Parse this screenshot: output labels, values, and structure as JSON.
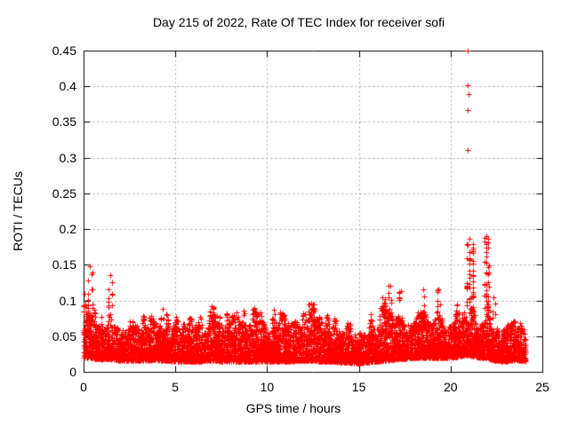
{
  "chart_data": {
    "type": "scatter",
    "title": "Day 215 of 2022, Rate Of TEC Index for receiver sofi",
    "xlabel": "GPS time / hours",
    "ylabel": "ROTI / TECUs",
    "xlim": [
      0,
      25
    ],
    "ylim": [
      0,
      0.45
    ],
    "xticks": [
      0,
      5,
      10,
      15,
      20,
      25
    ],
    "xtick_labels": [
      "0",
      "5",
      "10",
      "15",
      "20",
      "25"
    ],
    "yticks": [
      0,
      0.05,
      0.1,
      0.15,
      0.2,
      0.25,
      0.3,
      0.35,
      0.4,
      0.45
    ],
    "ytick_labels": [
      "0",
      "0.05",
      "0.1",
      "0.15",
      "0.2",
      "0.25",
      "0.3",
      "0.35",
      "0.4",
      "0.45"
    ],
    "grid": {
      "style": "dashed",
      "color": "#a9a9a9"
    },
    "border_color": "#000000",
    "marker": {
      "shape": "plus",
      "color": "#ff0000",
      "size": 7
    },
    "series_name": "ROTI",
    "data_time_range": [
      0.0,
      24.07
    ],
    "band_envelope": [
      [
        0.0,
        0.02,
        0.088
      ],
      [
        0.3,
        0.02,
        0.09
      ],
      [
        0.8,
        0.018,
        0.078
      ],
      [
        1.5,
        0.018,
        0.08
      ],
      [
        2.0,
        0.016,
        0.072
      ],
      [
        3.0,
        0.016,
        0.074
      ],
      [
        4.0,
        0.017,
        0.08
      ],
      [
        5.0,
        0.015,
        0.072
      ],
      [
        6.0,
        0.015,
        0.075
      ],
      [
        7.0,
        0.016,
        0.085
      ],
      [
        7.5,
        0.015,
        0.075
      ],
      [
        8.0,
        0.015,
        0.082
      ],
      [
        9.0,
        0.015,
        0.08
      ],
      [
        10.0,
        0.015,
        0.082
      ],
      [
        11.0,
        0.015,
        0.082
      ],
      [
        12.0,
        0.016,
        0.085
      ],
      [
        12.5,
        0.016,
        0.088
      ],
      [
        13.0,
        0.015,
        0.078
      ],
      [
        14.0,
        0.014,
        0.075
      ],
      [
        15.0,
        0.012,
        0.062
      ],
      [
        15.5,
        0.014,
        0.075
      ],
      [
        16.0,
        0.015,
        0.085
      ],
      [
        16.5,
        0.016,
        0.092
      ],
      [
        17.0,
        0.018,
        0.092
      ],
      [
        18.0,
        0.02,
        0.088
      ],
      [
        19.0,
        0.02,
        0.082
      ],
      [
        20.0,
        0.02,
        0.088
      ],
      [
        20.9,
        0.024,
        0.1
      ],
      [
        21.3,
        0.022,
        0.095
      ],
      [
        21.6,
        0.02,
        0.085
      ],
      [
        22.0,
        0.02,
        0.095
      ],
      [
        22.4,
        0.016,
        0.07
      ],
      [
        23.0,
        0.015,
        0.068
      ],
      [
        23.6,
        0.017,
        0.082
      ],
      [
        24.07,
        0.015,
        0.072
      ]
    ],
    "spike_clusters": [
      [
        0.05,
        0.05,
        0.11,
        6
      ],
      [
        0.35,
        0.12,
        0.148,
        16
      ],
      [
        1.45,
        0.1,
        0.136,
        12
      ],
      [
        4.3,
        0.1,
        0.088,
        6
      ],
      [
        7.0,
        0.12,
        0.092,
        6
      ],
      [
        9.3,
        0.1,
        0.09,
        5
      ],
      [
        12.4,
        0.15,
        0.096,
        8
      ],
      [
        16.3,
        0.12,
        0.105,
        7
      ],
      [
        16.7,
        0.08,
        0.121,
        6
      ],
      [
        17.3,
        0.12,
        0.113,
        7
      ],
      [
        18.5,
        0.08,
        0.115,
        6
      ],
      [
        19.35,
        0.07,
        0.115,
        6
      ],
      [
        21.05,
        0.18,
        0.186,
        46
      ],
      [
        21.95,
        0.14,
        0.19,
        36
      ],
      [
        22.35,
        0.06,
        0.105,
        5
      ]
    ],
    "outliers": [
      [
        20.95,
        0.45
      ],
      [
        20.95,
        0.402
      ],
      [
        20.98,
        0.389
      ],
      [
        20.95,
        0.367
      ],
      [
        20.95,
        0.311
      ]
    ],
    "generator": {
      "seed": 215,
      "n_points": 7600,
      "noise_freq": 5.5
    }
  }
}
